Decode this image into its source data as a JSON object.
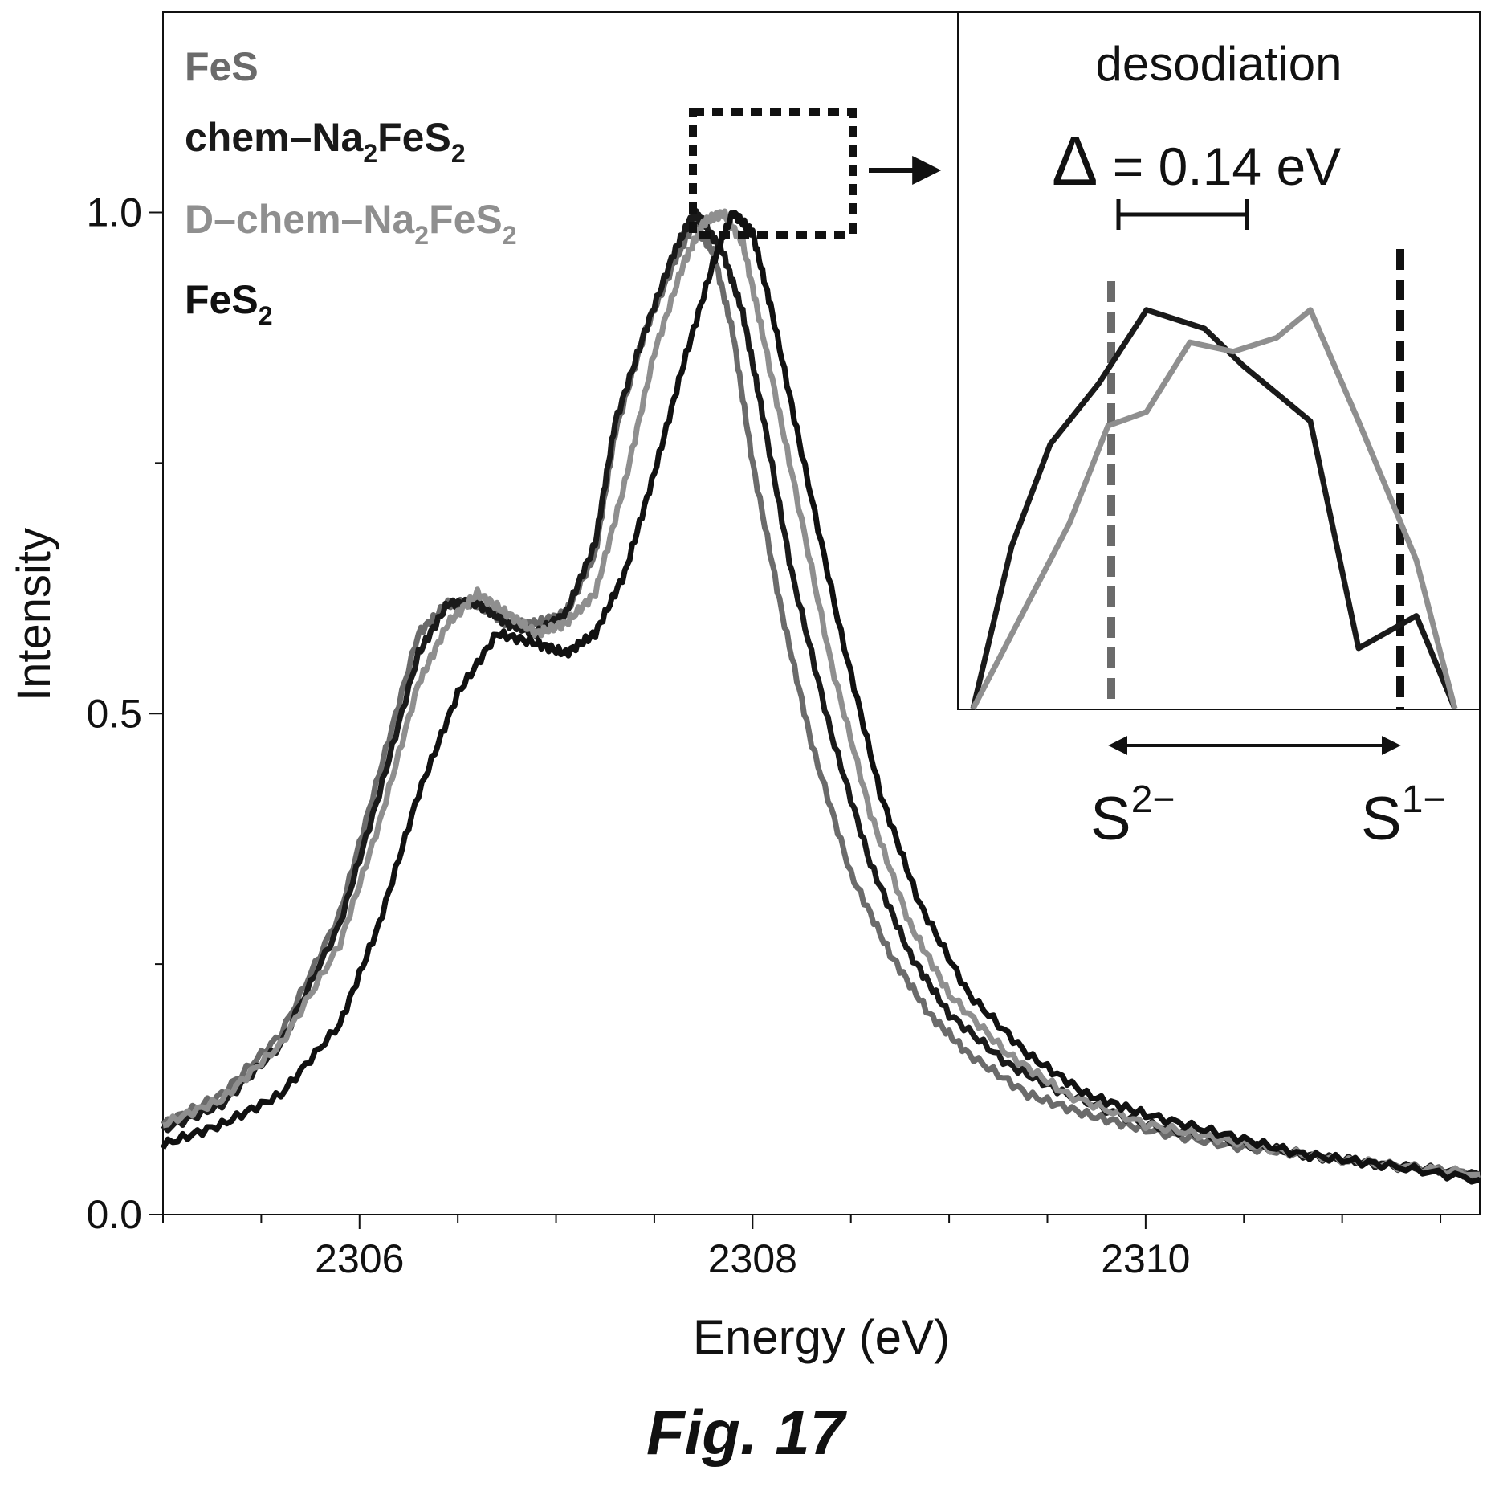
{
  "chart_data": {
    "type": "line",
    "xlabel": "Energy (eV)",
    "ylabel": "Intensity",
    "xlim": [
      2305,
      2311.7
    ],
    "ylim": [
      0,
      1.2
    ],
    "xticks": [
      2306,
      2308,
      2310
    ],
    "xtick_labels": [
      "2306",
      "2308",
      "2310"
    ],
    "yticks": [
      0.0,
      0.5,
      1.0
    ],
    "ytick_labels": [
      "0.0",
      "0.5",
      "1.0"
    ],
    "legend_position": "top-left",
    "legend": [
      {
        "text": "FeS",
        "color": "#6b6b6b"
      },
      {
        "text": "chem–Na",
        "sub1": "2",
        "mid": "FeS",
        "sub2": "2",
        "color": "#1a1a1a"
      },
      {
        "text": "D–chem–Na",
        "sub1": "2",
        "mid": "FeS",
        "sub2": "2",
        "color": "#8f8f8f"
      },
      {
        "text": "FeS",
        "sub1": "2",
        "color": "#111111"
      }
    ],
    "series": [
      {
        "name": "FeS",
        "color": "#6b6b6b",
        "x": [
          2305.0,
          2305.3,
          2305.6,
          2305.9,
          2306.1,
          2306.3,
          2306.45,
          2306.6,
          2306.75,
          2306.9,
          2307.05,
          2307.2,
          2307.3,
          2307.45,
          2307.6,
          2307.7,
          2307.8,
          2307.9,
          2308.0,
          2308.15,
          2308.3,
          2308.5,
          2308.7,
          2308.9,
          2309.1,
          2309.4,
          2309.7,
          2310.0,
          2310.4,
          2310.8,
          2311.2,
          2311.7
        ],
        "y": [
          0.09,
          0.12,
          0.18,
          0.3,
          0.44,
          0.58,
          0.61,
          0.61,
          0.59,
          0.59,
          0.6,
          0.66,
          0.78,
          0.88,
          0.95,
          0.99,
          0.96,
          0.88,
          0.75,
          0.6,
          0.47,
          0.34,
          0.26,
          0.2,
          0.16,
          0.12,
          0.1,
          0.085,
          0.07,
          0.06,
          0.05,
          0.04
        ]
      },
      {
        "name": "chem–Na2FeS2",
        "color": "#1a1a1a",
        "x": [
          2305.0,
          2305.3,
          2305.6,
          2305.9,
          2306.1,
          2306.3,
          2306.45,
          2306.6,
          2306.75,
          2306.9,
          2307.05,
          2307.2,
          2307.3,
          2307.45,
          2307.6,
          2307.7,
          2307.75,
          2307.85,
          2307.95,
          2308.05,
          2308.2,
          2308.4,
          2308.6,
          2308.8,
          2309.0,
          2309.3,
          2309.6,
          2310.0,
          2310.4,
          2310.8,
          2311.2,
          2311.7
        ],
        "y": [
          0.085,
          0.11,
          0.17,
          0.29,
          0.42,
          0.56,
          0.61,
          0.61,
          0.59,
          0.58,
          0.6,
          0.67,
          0.79,
          0.88,
          0.96,
          1.0,
          0.99,
          0.96,
          0.9,
          0.8,
          0.64,
          0.48,
          0.35,
          0.26,
          0.2,
          0.15,
          0.12,
          0.09,
          0.075,
          0.06,
          0.05,
          0.04
        ]
      },
      {
        "name": "D–chem–Na2FeS2",
        "color": "#8f8f8f",
        "x": [
          2305.0,
          2305.3,
          2305.6,
          2305.9,
          2306.1,
          2306.3,
          2306.45,
          2306.6,
          2306.75,
          2306.9,
          2307.05,
          2307.2,
          2307.35,
          2307.5,
          2307.65,
          2307.75,
          2307.85,
          2307.95,
          2308.05,
          2308.2,
          2308.4,
          2308.6,
          2308.8,
          2309.0,
          2309.3,
          2309.6,
          2310.0,
          2310.4,
          2310.8,
          2311.2,
          2311.7
        ],
        "y": [
          0.09,
          0.115,
          0.17,
          0.27,
          0.39,
          0.53,
          0.59,
          0.62,
          0.6,
          0.58,
          0.59,
          0.62,
          0.73,
          0.86,
          0.95,
          0.99,
          1.0,
          0.97,
          0.88,
          0.74,
          0.55,
          0.4,
          0.29,
          0.22,
          0.16,
          0.12,
          0.09,
          0.075,
          0.06,
          0.05,
          0.04
        ]
      },
      {
        "name": "FeS2",
        "color": "#111111",
        "x": [
          2305.0,
          2305.3,
          2305.6,
          2305.9,
          2306.1,
          2306.3,
          2306.5,
          2306.7,
          2306.9,
          2307.05,
          2307.2,
          2307.35,
          2307.5,
          2307.65,
          2307.8,
          2307.9,
          2308.0,
          2308.1,
          2308.25,
          2308.45,
          2308.65,
          2308.85,
          2309.1,
          2309.4,
          2309.7,
          2310.0,
          2310.4,
          2310.8,
          2311.2,
          2311.7
        ],
        "y": [
          0.07,
          0.09,
          0.12,
          0.19,
          0.29,
          0.42,
          0.52,
          0.58,
          0.57,
          0.56,
          0.58,
          0.64,
          0.74,
          0.85,
          0.95,
          1.0,
          0.98,
          0.9,
          0.76,
          0.58,
          0.42,
          0.31,
          0.22,
          0.16,
          0.12,
          0.1,
          0.08,
          0.06,
          0.05,
          0.035
        ]
      }
    ],
    "zoom_box_label": "",
    "inset": {
      "title": "desodiation",
      "delta_symbol": "Δ",
      "delta_text": " = 0.14 eV",
      "label_left": "S",
      "label_left_sup": "2−",
      "label_right": "S",
      "label_right_sup": "1−",
      "series": [
        {
          "name": "chem–Na2FeS2",
          "color": "#1a1a1a",
          "x": [
            0.0,
            0.08,
            0.16,
            0.26,
            0.36,
            0.48,
            0.56,
            0.7,
            0.8,
            0.92,
            1.0
          ],
          "y": [
            -0.02,
            0.35,
            0.57,
            0.7,
            0.86,
            0.82,
            0.74,
            0.62,
            0.13,
            0.2,
            0.0
          ]
        },
        {
          "name": "D–chem–Na2FeS2",
          "color": "#8f8f8f",
          "x": [
            0.0,
            0.1,
            0.2,
            0.28,
            0.36,
            0.45,
            0.54,
            0.63,
            0.7,
            0.8,
            0.92,
            1.0
          ],
          "y": [
            -0.02,
            0.2,
            0.4,
            0.61,
            0.64,
            0.79,
            0.77,
            0.8,
            0.86,
            0.62,
            0.32,
            -0.02
          ]
        }
      ]
    }
  },
  "caption": "Fig. 17"
}
